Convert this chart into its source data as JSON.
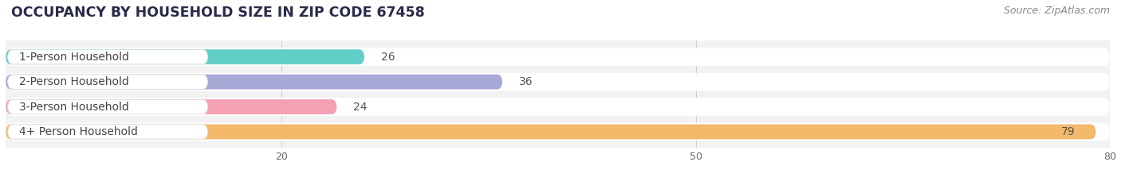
{
  "title": "OCCUPANCY BY HOUSEHOLD SIZE IN ZIP CODE 67458",
  "source": "Source: ZipAtlas.com",
  "categories": [
    "1-Person Household",
    "2-Person Household",
    "3-Person Household",
    "4+ Person Household"
  ],
  "values": [
    26,
    36,
    24,
    79
  ],
  "bar_colors": [
    "#62cec8",
    "#a9a9d8",
    "#f5a0b5",
    "#f5b96b"
  ],
  "xlim": [
    0,
    80
  ],
  "xticks": [
    20,
    50,
    80
  ],
  "bar_height": 0.72,
  "background_color": "#f2f2f2",
  "title_fontsize": 12.5,
  "label_fontsize": 10,
  "value_fontsize": 10,
  "source_fontsize": 9
}
